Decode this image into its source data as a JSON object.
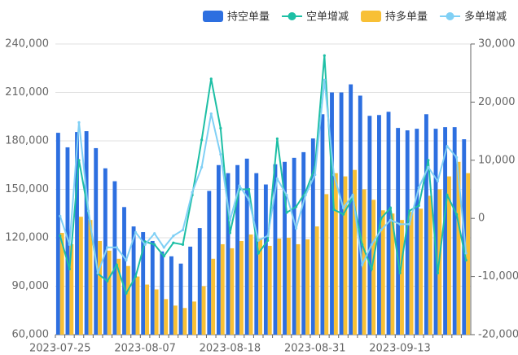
{
  "chart_data": {
    "type": "bar_line",
    "categories": [
      "2023-07-25",
      null,
      null,
      null,
      null,
      null,
      null,
      null,
      null,
      "2023-08-07",
      null,
      null,
      null,
      null,
      null,
      null,
      null,
      null,
      "2023-08-18",
      null,
      null,
      null,
      null,
      null,
      null,
      null,
      null,
      "2023-08-31",
      null,
      null,
      null,
      null,
      null,
      null,
      null,
      null,
      "2023-09-13",
      null,
      null,
      null,
      null,
      null,
      null,
      null
    ],
    "series": [
      {
        "name": "持空单量",
        "type": "bar",
        "color": "#2d6fe0",
        "values": [
          185000,
          176000,
          185500,
          186000,
          175500,
          163000,
          155000,
          139000,
          127000,
          123500,
          118000,
          111500,
          108500,
          104000,
          114500,
          126000,
          149000,
          165000,
          160000,
          165000,
          169000,
          160000,
          153000,
          165500,
          167000,
          169500,
          173000,
          181500,
          196500,
          210000,
          210000,
          215000,
          208000,
          195500,
          196000,
          198000,
          188000,
          186500,
          187500,
          196500,
          187500,
          188500,
          188500,
          181000
        ]
      },
      {
        "name": "空单增减",
        "type": "line",
        "axis": "y2",
        "color": "#1dbfa5",
        "values": [
          -3000,
          -8700,
          10000,
          1000,
          -9500,
          -10800,
          -8000,
          -12900,
          -10000,
          -4000,
          -4500,
          -6500,
          -4200,
          -4500,
          4000,
          13500,
          24000,
          15500,
          -2500,
          5000,
          5000,
          -6000,
          -3800,
          13700,
          1000,
          2000,
          4500,
          8800,
          28000,
          1500,
          700,
          3500,
          -4500,
          -8700,
          0,
          1800,
          -9400,
          1300,
          2200,
          10000,
          -9400,
          4000,
          700,
          -7200
        ]
      },
      {
        "name": "持多单量",
        "type": "bar",
        "color": "#f8c035",
        "values": [
          123000,
          116000,
          133000,
          131000,
          118000,
          112000,
          107000,
          102500,
          96000,
          91000,
          88000,
          82000,
          78000,
          76500,
          80500,
          90000,
          107000,
          116000,
          113500,
          118000,
          122000,
          119500,
          115000,
          119500,
          120000,
          116000,
          119000,
          127000,
          147000,
          160000,
          158000,
          162000,
          150000,
          143500,
          137000,
          135000,
          131000,
          136000,
          138000,
          146000,
          150000,
          158000,
          167000,
          160000
        ]
      },
      {
        "name": "多单增减",
        "type": "line",
        "axis": "y2",
        "color": "#80d0f5",
        "values": [
          400,
          -4500,
          16500,
          1300,
          -9400,
          -5000,
          -5000,
          -7200,
          -2400,
          -4500,
          -2600,
          -5000,
          -3000,
          -2000,
          4500,
          8800,
          18000,
          11000,
          -300,
          5600,
          3200,
          -3800,
          -3000,
          6800,
          4000,
          -1700,
          4000,
          7500,
          23800,
          7500,
          1800,
          4000,
          -8000,
          -4500,
          -2000,
          -300,
          -1000,
          -1000,
          5300,
          8800,
          6400,
          12400,
          10500,
          -6000
        ]
      }
    ],
    "ylim": [
      60000,
      240000
    ],
    "yticks": [
      {
        "value": 60000,
        "label": "60,000"
      },
      {
        "value": 90000,
        "label": "90,000"
      },
      {
        "value": 120000,
        "label": "120,000"
      },
      {
        "value": 150000,
        "label": "150,000"
      },
      {
        "value": 180000,
        "label": "180,000"
      },
      {
        "value": 210000,
        "label": "210,000"
      },
      {
        "value": 240000,
        "label": "240,000"
      }
    ],
    "y2lim": [
      -20000,
      30000
    ],
    "y2ticks": [
      {
        "value": -20000,
        "label": "-20,000"
      },
      {
        "value": -10000,
        "label": "-10,000"
      },
      0,
      {
        "value": 10000,
        "label": "10,000"
      },
      {
        "value": 20000,
        "label": "20,000"
      },
      {
        "value": 30000,
        "label": "30,000"
      }
    ],
    "grid": true,
    "legend": "top-right"
  }
}
